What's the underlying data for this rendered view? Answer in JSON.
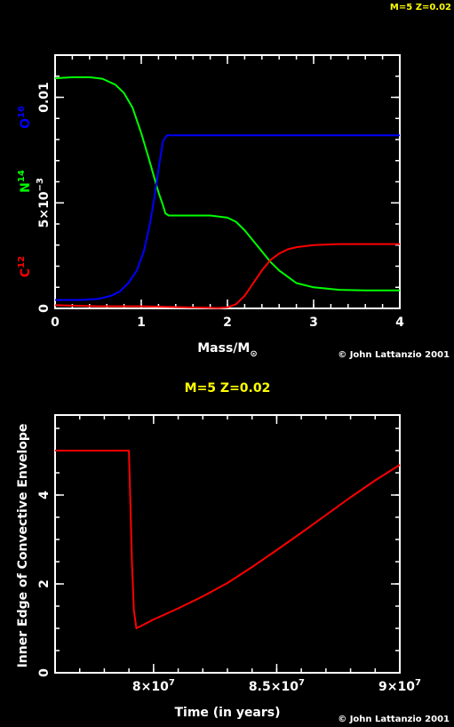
{
  "top_label": "M=5 Z=0.02",
  "credit": "© John Lattanzio 2001",
  "chart_data": [
    {
      "type": "line",
      "title": "",
      "xlabel": "Mass/M",
      "xlabel_sub": "⊙",
      "ylabel_parts": [
        {
          "base": "C",
          "sup": "12",
          "color": "#ff0000"
        },
        {
          "base": "N",
          "sup": "14",
          "color": "#00ff00"
        },
        {
          "base": "O",
          "sup": "16",
          "color": "#0000ff"
        }
      ],
      "xlim": [
        0,
        4
      ],
      "ylim": [
        0,
        0.012
      ],
      "xticks": [
        {
          "v": 0,
          "label": "0"
        },
        {
          "v": 1,
          "label": "1"
        },
        {
          "v": 2,
          "label": "2"
        },
        {
          "v": 3,
          "label": "3"
        },
        {
          "v": 4,
          "label": "4"
        }
      ],
      "yticks": [
        {
          "v": 0,
          "label": "0"
        },
        {
          "v": 0.005,
          "label": "5×10"
        },
        {
          "v": 0.01,
          "label": "0.01"
        }
      ],
      "ytick_exp": "−3",
      "series": [
        {
          "color": "#00ff00",
          "x": [
            0,
            0.2,
            0.4,
            0.55,
            0.7,
            0.8,
            0.9,
            1.0,
            1.08,
            1.15,
            1.2,
            1.25,
            1.28,
            1.32,
            1.5,
            1.8,
            2.0,
            2.1,
            2.2,
            2.3,
            2.4,
            2.5,
            2.6,
            2.7,
            2.8,
            3.0,
            3.3,
            3.6,
            4.0
          ],
          "y": [
            0.0109,
            0.01095,
            0.01095,
            0.01088,
            0.0106,
            0.0102,
            0.0095,
            0.0083,
            0.0072,
            0.0062,
            0.0055,
            0.0049,
            0.0045,
            0.0044,
            0.0044,
            0.0044,
            0.0043,
            0.0041,
            0.0037,
            0.0032,
            0.0027,
            0.0022,
            0.0018,
            0.0015,
            0.0012,
            0.001,
            0.00088,
            0.00085,
            0.00085
          ]
        },
        {
          "color": "#0000ff",
          "x": [
            0,
            0.3,
            0.5,
            0.65,
            0.75,
            0.85,
            0.95,
            1.03,
            1.1,
            1.15,
            1.2,
            1.25,
            1.28,
            1.3,
            1.5,
            2.0,
            3.0,
            4.0
          ],
          "y": [
            0.0004,
            0.0004,
            0.00045,
            0.0006,
            0.0008,
            0.0012,
            0.0018,
            0.0027,
            0.004,
            0.0052,
            0.0066,
            0.0079,
            0.0081,
            0.0082,
            0.0082,
            0.0082,
            0.0082,
            0.0082
          ]
        },
        {
          "color": "#ff0000",
          "x": [
            0,
            0.5,
            1.0,
            1.5,
            1.9,
            2.0,
            2.1,
            2.2,
            2.3,
            2.4,
            2.5,
            2.6,
            2.7,
            2.8,
            3.0,
            3.3,
            3.6,
            4.0
          ],
          "y": [
            0.00015,
            0.0001,
            0.0001,
            5e-05,
            2e-05,
            5e-05,
            0.0002,
            0.0006,
            0.0012,
            0.0018,
            0.0023,
            0.0026,
            0.0028,
            0.0029,
            0.003,
            0.00305,
            0.00305,
            0.00305
          ]
        }
      ]
    },
    {
      "type": "line",
      "title": "M=5 Z=0.02",
      "xlabel": "Time (in years)",
      "ylabel": "Inner Edge of Convective Envelope",
      "xlim": [
        76000000,
        90000000
      ],
      "ylim": [
        0,
        5.8
      ],
      "xticks": [
        {
          "v": 80000000,
          "mant": "8×10",
          "exp": "7"
        },
        {
          "v": 85000000,
          "mant": "8.5×10",
          "exp": "7"
        },
        {
          "v": 90000000,
          "mant": "9×10",
          "exp": "7"
        }
      ],
      "yticks": [
        {
          "v": 0,
          "label": "0"
        },
        {
          "v": 2,
          "label": "2"
        },
        {
          "v": 4,
          "label": "4"
        }
      ],
      "series": [
        {
          "color": "#ff0000",
          "x": [
            76000000,
            79000000,
            79050000,
            79120000,
            79200000,
            79300000,
            80000000,
            81000000,
            82000000,
            83000000,
            84000000,
            85000000,
            86000000,
            87000000,
            88000000,
            89000000,
            90000000
          ],
          "y": [
            5.0,
            5.0,
            4.0,
            2.5,
            1.4,
            1.0,
            1.2,
            1.45,
            1.72,
            2.02,
            2.38,
            2.76,
            3.15,
            3.55,
            3.95,
            4.33,
            4.68
          ]
        }
      ]
    }
  ]
}
